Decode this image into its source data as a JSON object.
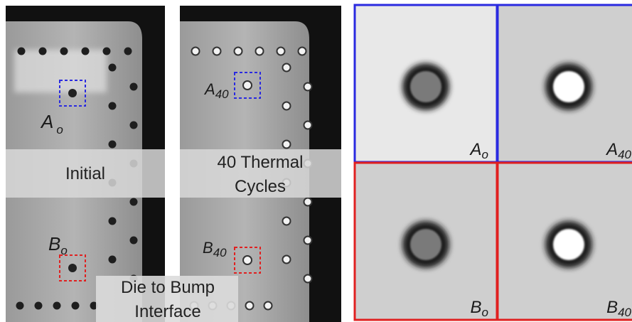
{
  "initial_image": {
    "caption": "Initial",
    "labels": [
      {
        "letter": "A",
        "sub": "o"
      },
      {
        "letter": "B",
        "sub": "o"
      }
    ]
  },
  "cycled_image": {
    "caption": [
      "40 Thermal",
      "Cycles"
    ],
    "labels": [
      {
        "letter": "A",
        "sub": "40"
      },
      {
        "letter": "B",
        "sub": "40"
      }
    ]
  },
  "interface_label": [
    "Die to Bump",
    "Interface"
  ],
  "zoom_grid": [
    {
      "letter": "A",
      "sub": "o"
    },
    {
      "letter": "A",
      "sub": "40"
    },
    {
      "letter": "B",
      "sub": "o"
    },
    {
      "letter": "B",
      "sub": "40"
    }
  ]
}
